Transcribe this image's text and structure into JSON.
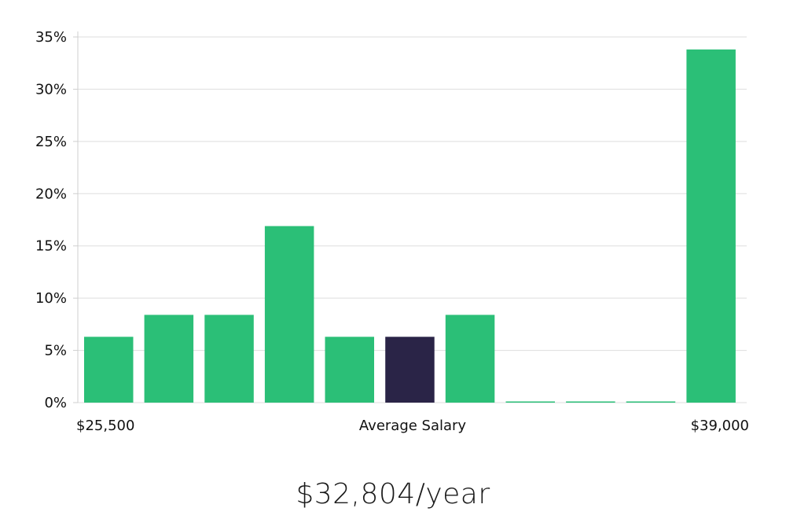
{
  "chart_data": {
    "type": "bar",
    "series": [
      {
        "values": [
          6.3,
          8.4,
          8.4,
          16.9,
          6.3,
          6.3,
          8.4,
          0,
          0,
          0,
          33.8
        ]
      }
    ],
    "highlight_index": 5,
    "bar_color": "#2bbf77",
    "highlight_color": "#2a2447",
    "ylim": [
      0,
      35
    ],
    "y_ticks": [
      "0%",
      "5%",
      "10%",
      "15%",
      "20%",
      "25%",
      "30%",
      "35%"
    ],
    "x_labels": {
      "left": "$25,500",
      "center": "Average Salary",
      "right": "$39,000"
    },
    "grid": true,
    "legend": "none"
  },
  "salary": {
    "average": "$32,804/year"
  }
}
